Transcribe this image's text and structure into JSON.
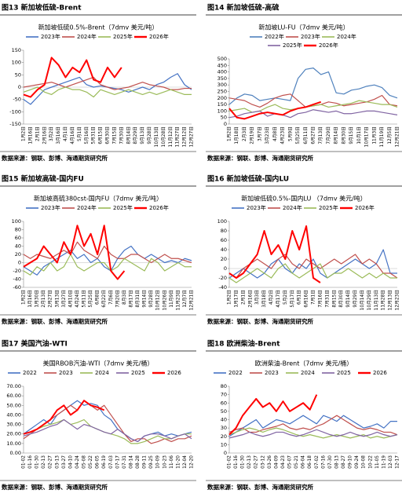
{
  "chart_data": [
    {
      "type": "line",
      "figure_label": "图13  新加坡低硫-Brent",
      "title": "新加坡低硫0.5%-Brent（7dmv 美元/吨）",
      "source": "数据来源：钢联、彭博、海通期货研究所",
      "categories": [
        "1月2日",
        "1月16日",
        "2月1日",
        "2月16日",
        "3月2日",
        "3月16日",
        "4月1日",
        "4月16日",
        "5月1日",
        "5月16日",
        "5月31日",
        "6月15日",
        "6月30日",
        "7月15日",
        "7月30日",
        "8月14日",
        "8月29日",
        "9月13日",
        "9月28日",
        "10月13日",
        "10月28日",
        "11月12日",
        "11月27日",
        "12月12日",
        "12月27日"
      ],
      "ylim": [
        -150,
        150
      ],
      "yticks": [
        -150,
        -100,
        -50,
        0,
        50,
        100,
        150
      ],
      "series": [
        {
          "name": "2023年",
          "color": "#4472c4",
          "values": [
            -50,
            -70,
            -40,
            -10,
            0,
            10,
            20,
            30,
            40,
            10,
            0,
            5,
            0,
            -5,
            -10,
            -20,
            -10,
            0,
            -10,
            10,
            20,
            40,
            55,
            10,
            -10
          ]
        },
        {
          "name": "2024年",
          "color": "#c0504d",
          "values": [
            0,
            5,
            10,
            15,
            20,
            10,
            0,
            10,
            20,
            30,
            40,
            10,
            0,
            -10,
            -5,
            0,
            10,
            20,
            10,
            5,
            0,
            -10,
            -10,
            -5,
            -5
          ]
        },
        {
          "name": "2025年",
          "color": "#9bbb59",
          "values": [
            -20,
            -10,
            0,
            -20,
            -30,
            -10,
            0,
            -10,
            -10,
            -20,
            -40,
            -10,
            -20,
            -30,
            -20,
            -10,
            -20,
            -30,
            -20,
            -30,
            -20,
            -10,
            -20,
            -30,
            -30
          ]
        },
        {
          "name": "2026年",
          "color": "#ff0000",
          "values": [
            -30,
            -40,
            -10,
            10,
            120,
            90,
            40,
            80,
            60,
            110,
            30,
            20,
            80,
            40,
            80,
            null,
            null,
            null,
            null,
            null,
            null,
            null,
            null,
            null,
            null
          ]
        }
      ]
    },
    {
      "type": "line",
      "figure_label": "图14  新加坡低硫-高硫",
      "title": "新加坡LU-FU（7dmv 美元/吨）",
      "source": "数据来源：钢联、彭博、海通期货研究所",
      "categories": [
        "1月2日",
        "1月18日",
        "2月3日",
        "2月19日",
        "3月7日",
        "3月23日",
        "4月8日",
        "4月23日",
        "5月9日",
        "5月25日",
        "6月11日",
        "6月27日",
        "7月13日",
        "7月29日",
        "8月14日",
        "8月30日",
        "9月15日",
        "10月1日",
        "10月17日",
        "11月3日",
        "11月19日",
        "12月5日",
        "12月21日"
      ],
      "ylim": [
        0,
        500
      ],
      "yticks": [
        0,
        50,
        100,
        150,
        200,
        250,
        300,
        350,
        400,
        450,
        500
      ],
      "series": [
        {
          "name": "2022年",
          "color": "#4f81bd",
          "values": [
            150,
            200,
            230,
            220,
            180,
            190,
            200,
            190,
            180,
            350,
            420,
            430,
            380,
            400,
            240,
            230,
            260,
            270,
            290,
            300,
            280,
            220,
            200
          ]
        },
        {
          "name": "2023年",
          "color": "#c0504d",
          "values": [
            200,
            190,
            180,
            150,
            130,
            160,
            200,
            220,
            230,
            180,
            130,
            140,
            150,
            170,
            160,
            140,
            150,
            160,
            170,
            190,
            220,
            150,
            140
          ]
        },
        {
          "name": "2024年",
          "color": "#9bbb59",
          "values": [
            100,
            110,
            120,
            90,
            100,
            130,
            150,
            120,
            110,
            120,
            130,
            140,
            150,
            130,
            140,
            150,
            160,
            180,
            170,
            160,
            150,
            150,
            130
          ]
        },
        {
          "name": "2025年",
          "color": "#8064a2",
          "values": [
            50,
            60,
            80,
            90,
            100,
            60,
            80,
            70,
            50,
            80,
            90,
            110,
            100,
            90,
            100,
            80,
            80,
            90,
            100,
            100,
            90,
            80,
            70
          ]
        },
        {
          "name": "2026年",
          "color": "#ff0000",
          "values": [
            120,
            50,
            40,
            60,
            80,
            90,
            80,
            70,
            100,
            120,
            130,
            150,
            170,
            null,
            null,
            null,
            null,
            null,
            null,
            null,
            null,
            null,
            null
          ]
        }
      ]
    },
    {
      "type": "line",
      "figure_label": "图15  新加坡高硫-国内FU",
      "title": "新加坡高硫380cst-国内FU（7dmv 美元/吨）",
      "source": "数据来源：钢联、彭博、海通期货研究所",
      "categories": [
        "1月2日",
        "1月16日",
        "1月30日",
        "2月13日",
        "2月27日",
        "3月13日",
        "3月27日",
        "4月10日",
        "4月24日",
        "5月11日",
        "5月25日",
        "6月8日",
        "6月22日",
        "7月6日",
        "7月20日",
        "8月3日",
        "8月17日",
        "8月31日",
        "9月14日",
        "9月28日",
        "10月12日",
        "10月26日",
        "11月9日",
        "11月23日",
        "12月7日",
        "12月21日"
      ],
      "ylim": [
        -60,
        100
      ],
      "yticks": [
        -60,
        -40,
        -20,
        0,
        20,
        40,
        60,
        80,
        100
      ],
      "series": [
        {
          "name": "2023年",
          "color": "#4472c4",
          "values": [
            -10,
            -20,
            -30,
            -10,
            0,
            10,
            20,
            30,
            10,
            20,
            0,
            10,
            -10,
            -20,
            10,
            30,
            40,
            20,
            10,
            20,
            10,
            0,
            5,
            0,
            10,
            5
          ]
        },
        {
          "name": "2024年",
          "color": "#c0504d",
          "values": [
            20,
            10,
            20,
            15,
            10,
            20,
            30,
            20,
            50,
            30,
            20,
            10,
            40,
            20,
            10,
            10,
            20,
            20,
            10,
            0,
            10,
            20,
            10,
            10,
            5,
            0
          ]
        },
        {
          "name": "2025年",
          "color": "#9bbb59",
          "values": [
            -20,
            -30,
            -10,
            -20,
            0,
            -20,
            -10,
            20,
            -10,
            -20,
            -10,
            0,
            0,
            -20,
            -10,
            10,
            0,
            -10,
            -20,
            10,
            0,
            -20,
            -10,
            0,
            -10,
            -10
          ]
        },
        {
          "name": "2026年",
          "color": "#ff0000",
          "values": [
            -10,
            0,
            10,
            40,
            20,
            0,
            50,
            20,
            90,
            40,
            70,
            20,
            90,
            -20,
            -40,
            -20,
            null,
            null,
            null,
            null,
            null,
            null,
            null,
            null,
            null,
            null
          ]
        }
      ]
    },
    {
      "type": "line",
      "figure_label": "图16  新加坡低硫-国内LU",
      "title": "新加坡低硫0.5%-国内LU （7dmv 美元/吨）",
      "source": "数据来源：钢联、彭博、海通期货研究所",
      "categories": [
        "1月2日",
        "1月17日",
        "2月1日",
        "2月16日",
        "3月3日",
        "3月18日",
        "4月2日",
        "4月17日",
        "5月2日",
        "5月17日",
        "6月1日",
        "6月16日",
        "7月1日",
        "7月16日",
        "7月31日",
        "8月15日",
        "8月30日",
        "9月14日",
        "9月29日",
        "10月14日",
        "10月29日",
        "11月13日",
        "11月28日",
        "12月13日",
        "12月23日"
      ],
      "ylim": [
        -40,
        100
      ],
      "yticks": [
        -40,
        -20,
        0,
        20,
        40,
        60,
        80,
        100
      ],
      "series": [
        {
          "name": "2023年",
          "color": "#4472c4",
          "values": [
            -20,
            -10,
            0,
            -10,
            -20,
            -10,
            10,
            20,
            0,
            -10,
            10,
            0,
            20,
            -10,
            -20,
            -10,
            0,
            10,
            20,
            10,
            0,
            10,
            40,
            -10,
            -10
          ]
        },
        {
          "name": "2024年",
          "color": "#c0504d",
          "values": [
            -10,
            -20,
            0,
            10,
            20,
            10,
            0,
            20,
            30,
            10,
            0,
            20,
            10,
            0,
            10,
            20,
            10,
            20,
            30,
            10,
            20,
            10,
            -10,
            -10,
            -20
          ]
        },
        {
          "name": "2025年",
          "color": "#9bbb59",
          "values": [
            -20,
            -30,
            -20,
            -10,
            0,
            -10,
            -20,
            0,
            10,
            -10,
            -20,
            -10,
            0,
            10,
            -20,
            -10,
            -10,
            0,
            -10,
            -20,
            -10,
            -20,
            -10,
            -20,
            -20
          ]
        },
        {
          "name": "2026年",
          "color": "#ff0000",
          "values": [
            -10,
            -20,
            -10,
            10,
            30,
            80,
            30,
            50,
            20,
            80,
            40,
            90,
            -20,
            -30,
            null,
            null,
            null,
            null,
            null,
            null,
            null,
            null,
            null,
            null,
            null
          ]
        }
      ]
    },
    {
      "type": "line",
      "figure_label": "图17  美国汽油-WTI",
      "title": "美国RBOB汽油-WTI（7dmv 美元/桶）",
      "source": "数据来源：钢联、彭博、海通期货研究所",
      "categories": [
        "01-02",
        "01-16",
        "01-30",
        "02-13",
        "02-27",
        "03-13",
        "03-27",
        "04-10",
        "04-24",
        "05-08",
        "05-22",
        "06-05",
        "06-19",
        "07-03",
        "07-17",
        "07-31",
        "08-14",
        "08-28",
        "09-11",
        "09-25",
        "10-09",
        "10-23",
        "11-06",
        "11-20",
        "12-04",
        "12-20"
      ],
      "ylim": [
        0,
        70
      ],
      "yticks": [
        {
          "value": 0,
          "label": "0.00"
        },
        {
          "value": 10,
          "label": "10.00"
        },
        {
          "value": 20,
          "label": "20.00"
        },
        {
          "value": 30,
          "label": "30.00"
        },
        {
          "value": 40,
          "label": "40.00"
        },
        {
          "value": 50,
          "label": "50.00"
        },
        {
          "value": 60,
          "label": "60.00"
        },
        {
          "value": 70,
          "label": "70.00"
        }
      ],
      "series": [
        {
          "name": "2022",
          "color": "#4472c4",
          "values": [
            20,
            25,
            30,
            35,
            30,
            40,
            45,
            50,
            55,
            50,
            52,
            50,
            40,
            35,
            25,
            20,
            15,
            12,
            18,
            20,
            22,
            18,
            20,
            18,
            20,
            22
          ]
        },
        {
          "name": "2023",
          "color": "#c0504d",
          "values": [
            15,
            20,
            25,
            30,
            35,
            40,
            45,
            50,
            45,
            55,
            50,
            45,
            50,
            40,
            30,
            20,
            12,
            15,
            15,
            10,
            12,
            15,
            12,
            15,
            15,
            18
          ]
        },
        {
          "name": "2024",
          "color": "#9bbb59",
          "values": [
            20,
            22,
            25,
            28,
            30,
            32,
            35,
            30,
            32,
            35,
            28,
            25,
            22,
            20,
            18,
            15,
            10,
            10,
            12,
            15,
            18,
            15,
            15,
            18,
            20,
            20
          ]
        },
        {
          "name": "2025",
          "color": "#8064a2",
          "values": [
            18,
            20,
            22,
            25,
            28,
            30,
            35,
            30,
            25,
            30,
            28,
            25,
            22,
            20,
            25,
            20,
            15,
            12,
            18,
            20,
            20,
            18,
            15,
            18,
            20,
            15
          ]
        },
        {
          "name": "2026",
          "color": "#ff0000",
          "values": [
            20,
            22,
            25,
            30,
            35,
            45,
            50,
            40,
            45,
            55,
            50,
            48,
            45,
            null,
            null,
            null,
            null,
            null,
            null,
            null,
            null,
            null,
            null,
            null,
            null,
            null
          ]
        }
      ]
    },
    {
      "type": "line",
      "figure_label": "图18  欧洲柴油-Brent",
      "title": "欧洲柴油-Brent（7dmv 美元/桶）",
      "source": "数据来源：钢联、彭博、海通期货研究所",
      "categories": [
        "01-02",
        "01-16",
        "01-30",
        "02-13",
        "02-27",
        "03-12",
        "03-26",
        "04-09",
        "04-23",
        "05-07",
        "05-21",
        "06-04",
        "06-18",
        "07-02",
        "07-16",
        "07-30",
        "08-13",
        "08-27",
        "09-10",
        "09-24",
        "10-08",
        "10-22",
        "11-05",
        "11-19",
        "12-03",
        "12-17"
      ],
      "ylim": [
        0,
        80
      ],
      "yticks": [
        0,
        10,
        20,
        30,
        40,
        50,
        60,
        70,
        80
      ],
      "series": [
        {
          "name": "2022",
          "color": "#4472c4",
          "values": [
            20,
            25,
            30,
            35,
            40,
            30,
            35,
            40,
            38,
            35,
            40,
            45,
            40,
            35,
            45,
            42,
            38,
            45,
            40,
            35,
            30,
            32,
            35,
            30,
            38,
            38
          ]
        },
        {
          "name": "2023",
          "color": "#c0504d",
          "values": [
            25,
            28,
            30,
            25,
            25,
            28,
            30,
            32,
            35,
            30,
            28,
            30,
            28,
            32,
            35,
            40,
            45,
            40,
            35,
            30,
            28,
            30,
            28,
            25,
            25,
            22
          ]
        },
        {
          "name": "2024",
          "color": "#9bbb59",
          "values": [
            22,
            25,
            28,
            30,
            28,
            25,
            28,
            30,
            28,
            25,
            22,
            20,
            22,
            20,
            18,
            20,
            22,
            20,
            18,
            20,
            22,
            18,
            20,
            18,
            20,
            22
          ]
        },
        {
          "name": "2025",
          "color": "#8064a2",
          "values": [
            18,
            20,
            22,
            25,
            22,
            20,
            22,
            25,
            25,
            22,
            20,
            22,
            25,
            28,
            25,
            22,
            20,
            22,
            25,
            22,
            20,
            22,
            25,
            22,
            20,
            22
          ]
        },
        {
          "name": "2026",
          "color": "#ff0000",
          "values": [
            22,
            30,
            45,
            55,
            65,
            55,
            60,
            50,
            62,
            50,
            55,
            60,
            52,
            70,
            null,
            null,
            null,
            null,
            null,
            null,
            null,
            null,
            null,
            null,
            null,
            null
          ]
        }
      ]
    }
  ]
}
